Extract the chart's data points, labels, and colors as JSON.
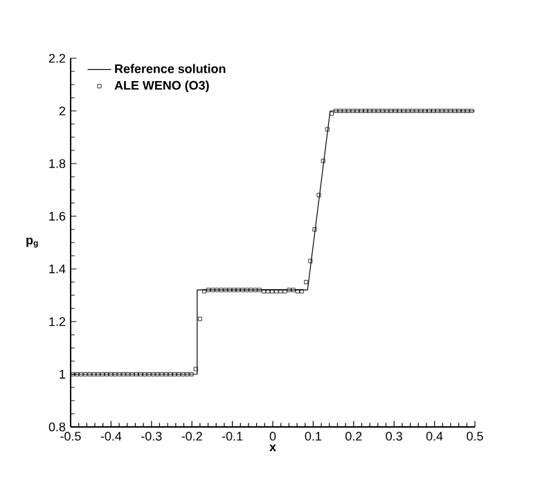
{
  "chart_data": {
    "type": "line",
    "xlabel": "x",
    "ylabel": "p$_{g}$",
    "xlim": [
      -0.5,
      0.5
    ],
    "ylim": [
      0.8,
      2.2
    ],
    "xticks": [
      -0.5,
      -0.4,
      -0.3,
      -0.2,
      -0.1,
      0,
      0.1,
      0.2,
      0.3,
      0.4,
      0.5
    ],
    "yticks": [
      0.8,
      1,
      1.2,
      1.4,
      1.6,
      1.8,
      2,
      2.2
    ],
    "legend": "top left",
    "grid": false,
    "line_style": "solid",
    "series": [
      {
        "name": "Reference solution",
        "color": "#000000",
        "marker": "none",
        "x": [
          -0.5,
          -0.187,
          -0.187,
          0.086,
          0.142,
          0.5
        ],
        "values": [
          1,
          1,
          1.32,
          1.32,
          2,
          2
        ]
      },
      {
        "name": "ALE WENO (O3)",
        "type": "scatter",
        "color": "#000000",
        "marker": "square",
        "x": [
          -0.495,
          -0.4845,
          -0.474,
          -0.4635,
          -0.453,
          -0.4425,
          -0.432,
          -0.4215,
          -0.411,
          -0.4005,
          -0.39,
          -0.3795,
          -0.369,
          -0.3585,
          -0.348,
          -0.3375,
          -0.327,
          -0.3165,
          -0.306,
          -0.2955,
          -0.285,
          -0.2745,
          -0.264,
          -0.2535,
          -0.243,
          -0.2325,
          -0.222,
          -0.2115,
          -0.201,
          -0.1905,
          -0.18,
          -0.1695,
          -0.159,
          -0.1485,
          -0.138,
          -0.1275,
          -0.117,
          -0.1065,
          -0.096,
          -0.0855,
          -0.075,
          -0.0645,
          -0.054,
          -0.0435,
          -0.033,
          -0.0225,
          -0.012,
          -0.0015,
          0.009,
          0.0195,
          0.03,
          0.0405,
          0.051,
          0.0615,
          0.072,
          0.0825,
          0.093,
          0.1035,
          0.114,
          0.1245,
          0.135,
          0.1455,
          0.156,
          0.1665,
          0.177,
          0.1875,
          0.198,
          0.2085,
          0.219,
          0.2295,
          0.24,
          0.2505,
          0.261,
          0.2715,
          0.282,
          0.2925,
          0.303,
          0.3135,
          0.324,
          0.3345,
          0.345,
          0.3555,
          0.366,
          0.3765,
          0.387,
          0.3975,
          0.408,
          0.4185,
          0.429,
          0.4395,
          0.45,
          0.4605,
          0.471,
          0.4815,
          0.492
        ],
        "values": [
          1,
          1,
          1,
          1,
          1,
          1,
          1,
          1,
          1,
          1,
          1,
          1,
          1,
          1,
          1,
          1,
          1,
          1,
          1,
          1,
          1,
          1,
          1,
          1,
          1,
          1,
          1,
          1,
          1,
          1.02,
          1.21,
          1.315,
          1.32,
          1.32,
          1.32,
          1.32,
          1.32,
          1.32,
          1.32,
          1.32,
          1.32,
          1.32,
          1.32,
          1.32,
          1.32,
          1.315,
          1.315,
          1.315,
          1.315,
          1.315,
          1.315,
          1.32,
          1.32,
          1.315,
          1.315,
          1.35,
          1.43,
          1.55,
          1.68,
          1.81,
          1.93,
          1.99,
          2,
          2,
          2,
          2,
          2,
          2,
          2,
          2,
          2,
          2,
          2,
          2,
          2,
          2,
          2,
          2,
          2,
          2,
          2,
          2,
          2,
          2,
          2,
          2,
          2,
          2,
          2,
          2,
          2,
          2,
          2,
          2,
          2
        ]
      }
    ]
  }
}
